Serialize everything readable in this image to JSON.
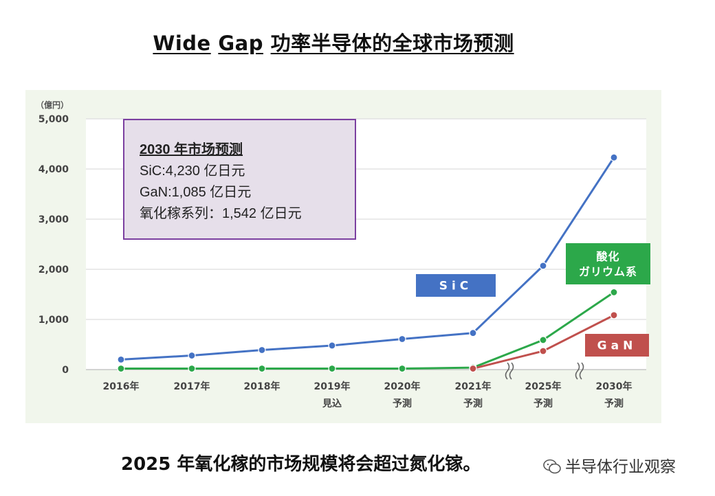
{
  "title": {
    "part1": "Wide",
    "part2": "Gap",
    "part3": "功率半导体的全球市场预测"
  },
  "annotation": {
    "heading": "2030 年市场预测",
    "line1": "SiC:4,230 亿日元",
    "line2": "GaN:1,085 亿日元",
    "line3": "氧化稼系列：1,542 亿日元"
  },
  "footer": "2025 年氧化稼的市场规模将会超过氮化镓。",
  "watermark": "半导体行业观察",
  "chart_data": {
    "type": "line",
    "unit_label": "（億円）",
    "categories": [
      "2016年",
      "2017年",
      "2018年",
      "2019年\n見込",
      "2020年\n予測",
      "2021年\n予測",
      "2025年\n予測",
      "2030年\n予測"
    ],
    "y_ticks": [
      "5,000",
      "4,000",
      "3,000",
      "2,000",
      "1,000",
      "0"
    ],
    "ylim": [
      0,
      5000
    ],
    "grid": true,
    "series": [
      {
        "name": "SiC",
        "color": "#4472c4",
        "values": [
          200,
          280,
          390,
          480,
          610,
          730,
          2070,
          4230
        ]
      },
      {
        "name": "酸化\nガリウム系",
        "color": "#2ca84a",
        "values": [
          20,
          20,
          20,
          20,
          20,
          40,
          590,
          1542
        ]
      },
      {
        "name": "GaN",
        "color": "#c0504d",
        "values": [
          null,
          null,
          null,
          null,
          null,
          20,
          370,
          1085
        ]
      }
    ]
  }
}
